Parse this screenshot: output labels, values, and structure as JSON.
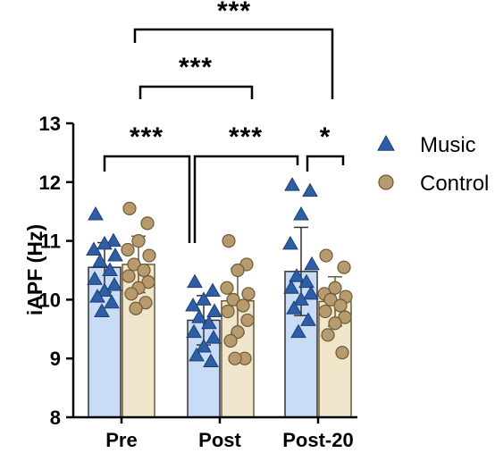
{
  "chart_data": {
    "type": "bar",
    "ylabel": "iAPF (Hz)",
    "ylim": [
      8,
      13
    ],
    "yticks": [
      8,
      9,
      10,
      11,
      12,
      13
    ],
    "categories": [
      "Pre",
      "Post",
      "Post-20"
    ],
    "legend_position": "right",
    "series": [
      {
        "name": "Music",
        "marker": "triangle",
        "bar_color": "#c8dcf5",
        "marker_color": "#2e5fa6",
        "values": [
          10.55,
          9.65,
          10.48
        ],
        "sd": [
          0.42,
          0.42,
          0.75
        ],
        "points": [
          [
            11.45,
            11.0,
            10.95,
            10.85,
            10.75,
            10.65,
            10.5,
            10.35,
            10.25,
            10.15,
            10.05,
            9.95,
            9.8
          ],
          [
            10.3,
            10.15,
            10.0,
            9.9,
            9.8,
            9.7,
            9.6,
            9.45,
            9.35,
            9.2,
            9.05,
            8.95
          ],
          [
            11.95,
            11.85,
            11.45,
            10.95,
            10.6,
            10.4,
            10.3,
            10.2,
            10.1,
            10.0,
            9.85,
            9.65,
            9.45
          ]
        ]
      },
      {
        "name": "Control",
        "marker": "circle",
        "bar_color": "#efe6cc",
        "marker_color": "#b79b6f",
        "values": [
          10.6,
          9.98,
          9.97
        ],
        "sd": [
          0.48,
          0.55,
          0.42
        ],
        "points": [
          [
            11.55,
            11.3,
            11.0,
            10.85,
            10.75,
            10.6,
            10.5,
            10.4,
            10.3,
            10.2,
            10.1,
            9.95,
            9.85
          ],
          [
            11.0,
            10.6,
            10.5,
            10.2,
            10.1,
            10.0,
            9.9,
            9.8,
            9.65,
            9.45,
            9.3,
            9.0,
            9.0
          ],
          [
            10.75,
            10.55,
            10.2,
            10.1,
            10.05,
            10.0,
            9.9,
            9.8,
            9.7,
            9.6,
            9.4,
            9.1
          ]
        ]
      }
    ],
    "annotations": [
      {
        "from": "Music Pre",
        "to": "Music Post",
        "label": "***"
      },
      {
        "from": "Music Post",
        "to": "Music Post-20",
        "label": "***"
      },
      {
        "from": "Music Post-20",
        "to": "Control Post-20",
        "label": "*"
      },
      {
        "from": "Pre",
        "to": "Post",
        "label": "***"
      },
      {
        "from": "Pre",
        "to": "Post-20",
        "label": "***"
      }
    ]
  }
}
